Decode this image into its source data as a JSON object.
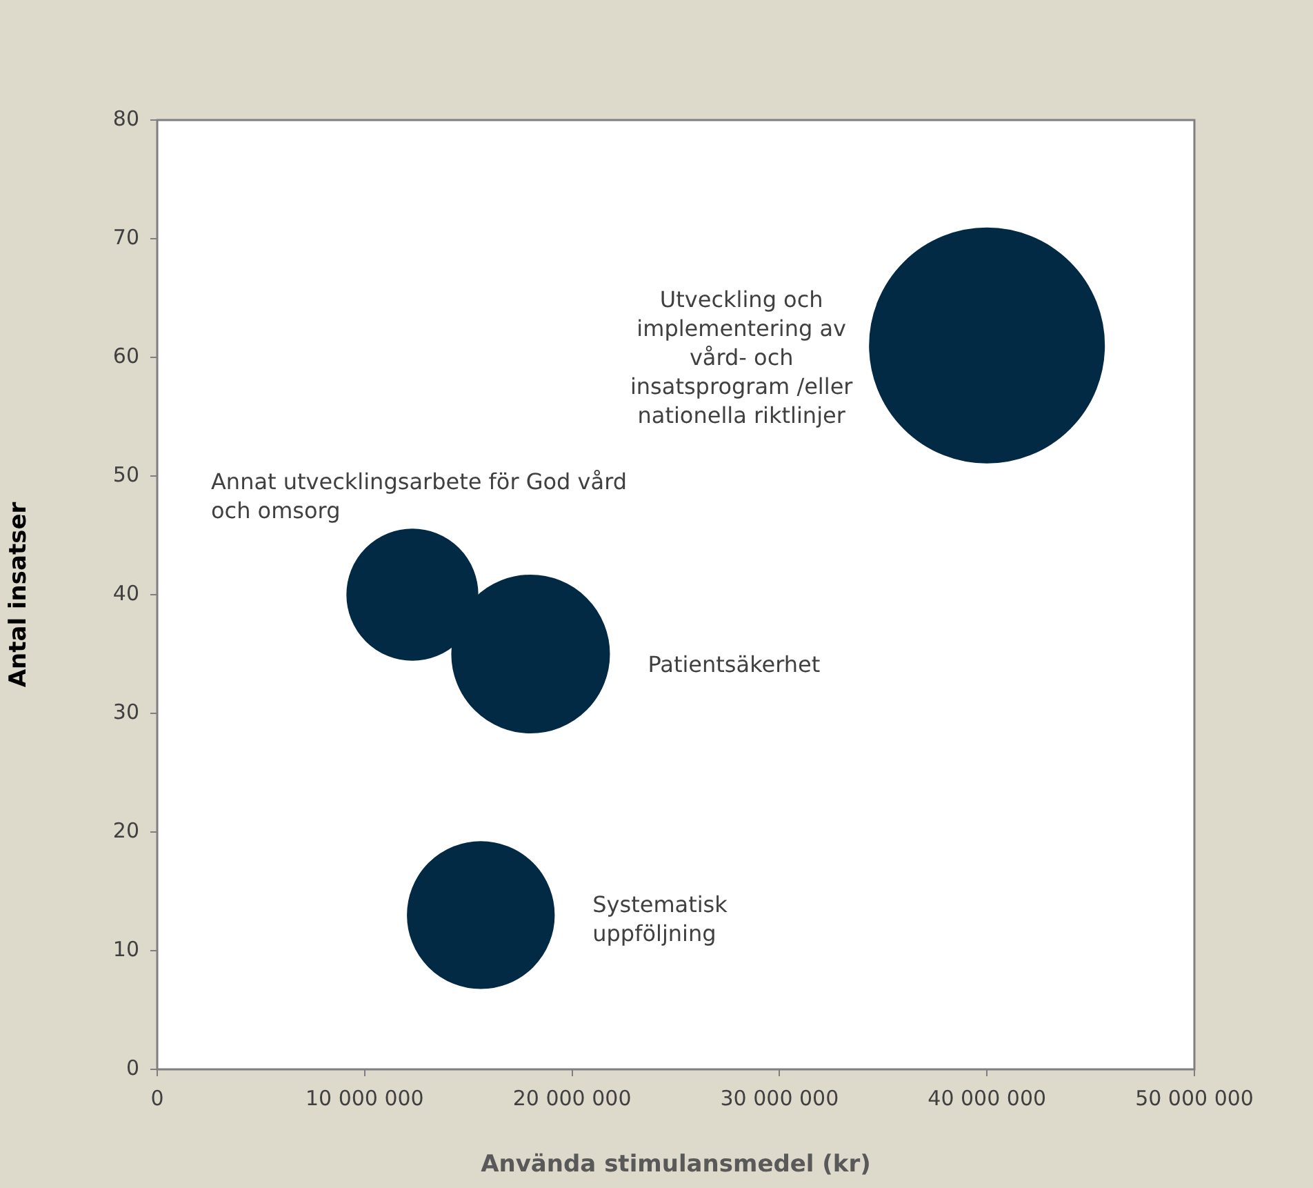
{
  "chart_data": {
    "type": "bubble",
    "xlabel": "Använda stimulansmedel (kr)",
    "ylabel": "Antal insatser",
    "xlim": [
      0,
      50000000
    ],
    "xticks": [
      {
        "value": 0,
        "label": "0"
      },
      {
        "value": 10000000,
        "label": "10 000 000"
      },
      {
        "value": 20000000,
        "label": "20 000 000"
      },
      {
        "value": 30000000,
        "label": "30 000 000"
      },
      {
        "value": 40000000,
        "label": "40 000 000"
      },
      {
        "value": 50000000,
        "label": "50 000 000"
      }
    ],
    "ylim": [
      0,
      80
    ],
    "yticks": [
      0,
      10,
      20,
      30,
      40,
      50,
      60,
      70,
      80
    ],
    "series": [
      {
        "name": "Utveckling och implementering av vård- och insatsprogram /eller nationella riktlinjer",
        "color": "#022a44",
        "x": [
          40000000
        ],
        "values": [
          61
        ],
        "sizes": [
          1
        ]
      },
      {
        "name": "Annat utvecklingsarbete för God vård och omsorg",
        "color": "#022a44",
        "x": [
          12300000
        ],
        "values": [
          40
        ],
        "sizes": [
          0.31
        ]
      },
      {
        "name": "Patientsäkerhet",
        "color": "#022a44",
        "x": [
          18000000
        ],
        "values": [
          35
        ],
        "sizes": [
          0.45
        ]
      },
      {
        "name": "Systematisk uppföljning",
        "color": "#022a44",
        "x": [
          15600000
        ],
        "values": [
          13
        ],
        "sizes": [
          0.39
        ]
      }
    ]
  }
}
